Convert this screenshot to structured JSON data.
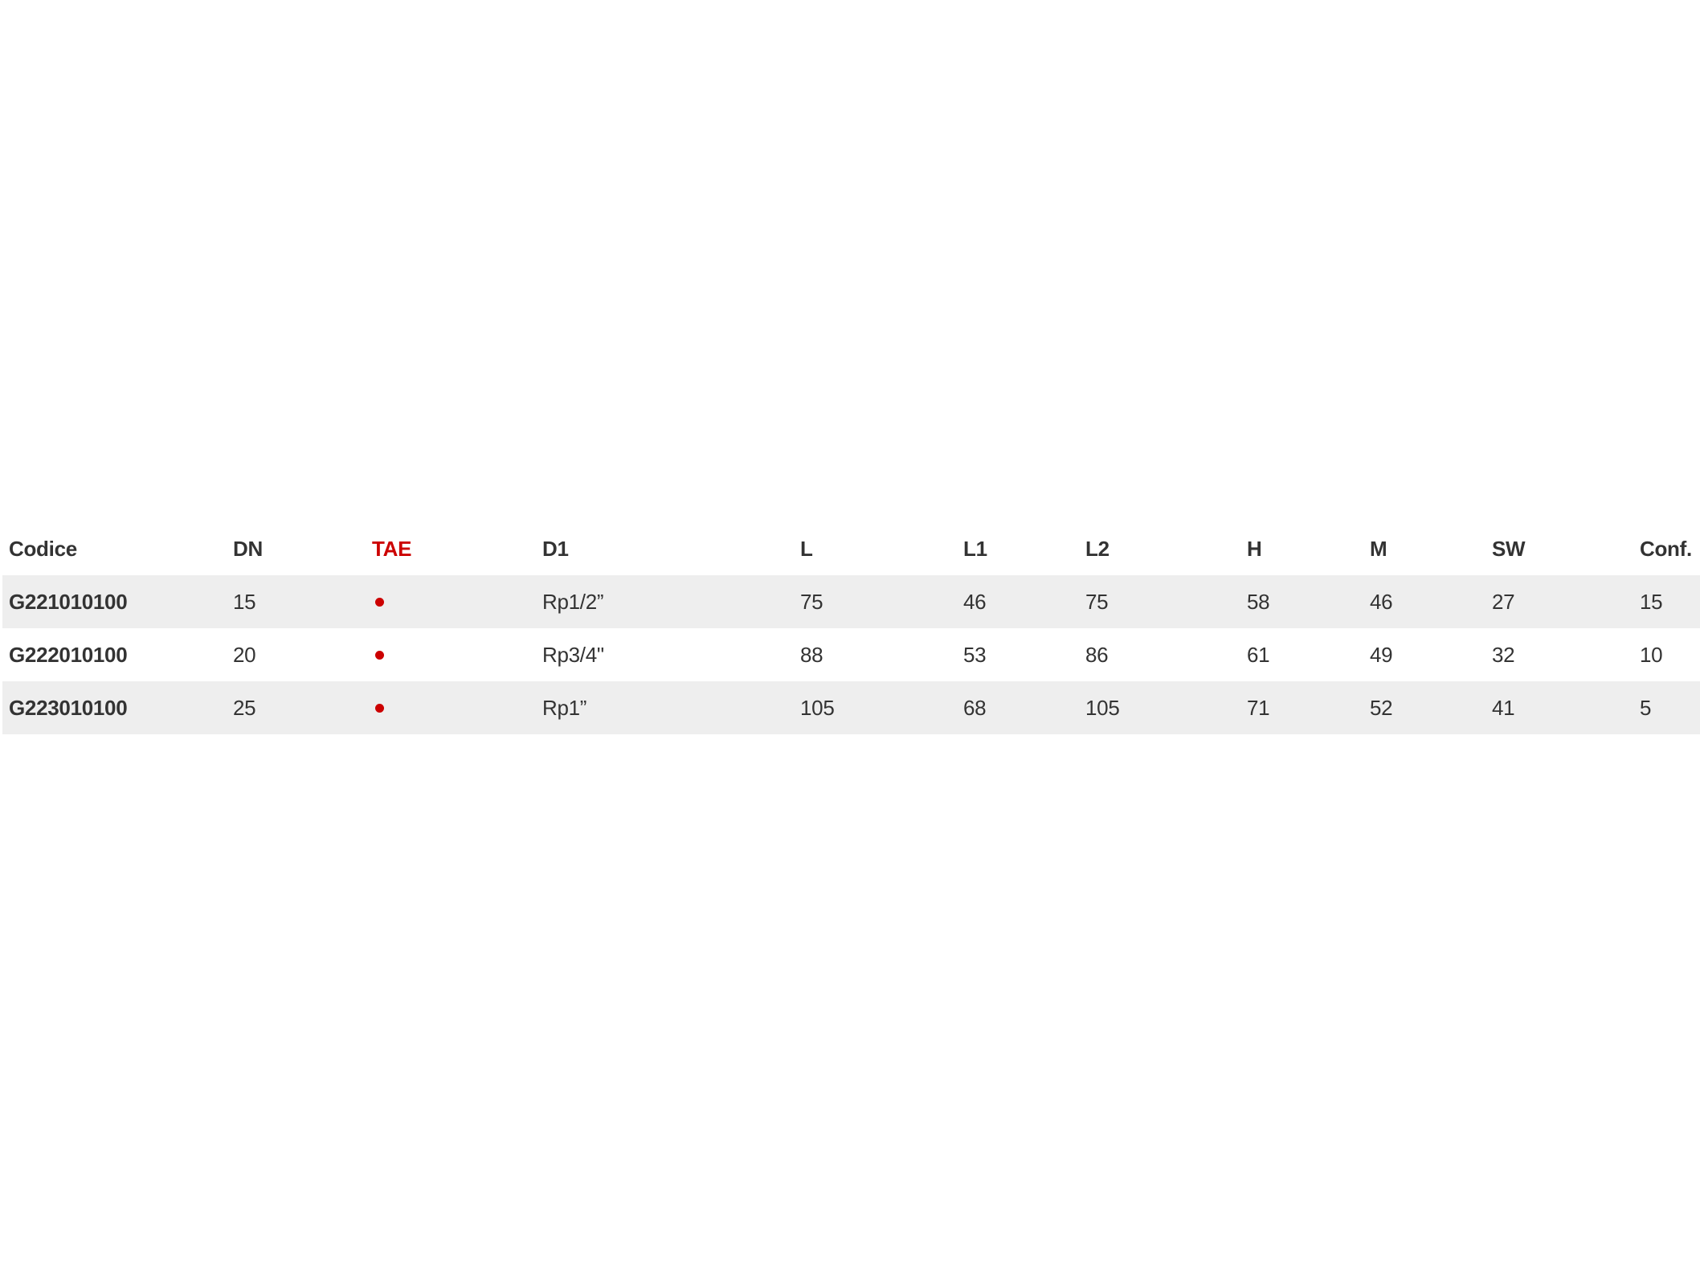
{
  "table": {
    "headers": [
      "Codice",
      "DN",
      "TAE",
      "D1",
      "L",
      "L1",
      "L2",
      "H",
      "M",
      "SW",
      "Conf."
    ],
    "tae_color": "#cc0000",
    "row_shade_color": "#eeeeee",
    "rows": [
      {
        "codice": "G221010100",
        "dn": "15",
        "tae": "dot",
        "d1": "Rp1/2”",
        "l": "75",
        "l1": "46",
        "l2": "75",
        "h": "58",
        "m": "46",
        "sw": "27",
        "conf": "15"
      },
      {
        "codice": "G222010100",
        "dn": "20",
        "tae": "dot",
        "d1": "Rp3/4\"",
        "l": "88",
        "l1": "53",
        "l2": "86",
        "h": "61",
        "m": "49",
        "sw": "32",
        "conf": "10"
      },
      {
        "codice": "G223010100",
        "dn": "25",
        "tae": "dot",
        "d1": "Rp1”",
        "l": "105",
        "l1": "68",
        "l2": "105",
        "h": "71",
        "m": "52",
        "sw": "41",
        "conf": "5"
      }
    ]
  }
}
